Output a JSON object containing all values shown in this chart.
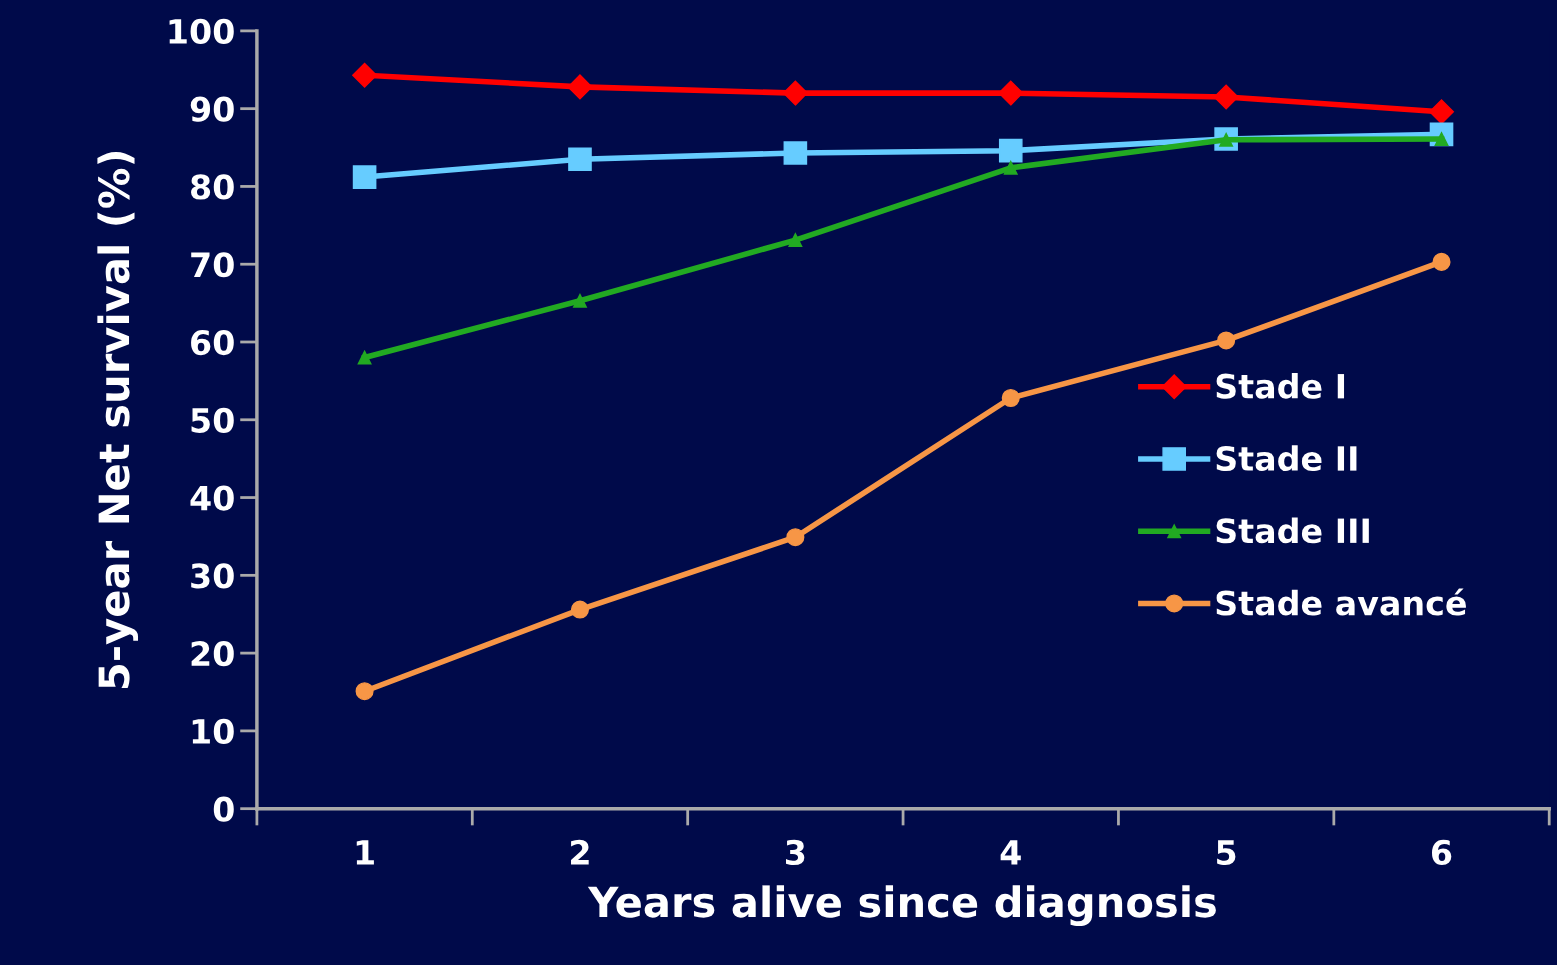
{
  "chart_data": {
    "type": "line",
    "xlabel": "Years alive since diagnosis",
    "ylabel": "5-year Net survival (%)",
    "categories": [
      "1",
      "2",
      "3",
      "4",
      "5",
      "6"
    ],
    "ylim": [
      0,
      100
    ],
    "yticks": [
      0,
      10,
      20,
      30,
      40,
      50,
      60,
      70,
      80,
      90,
      100
    ],
    "grid": false,
    "legend": "right",
    "series": [
      {
        "name": "Stade I",
        "color": "#ff0000",
        "marker": "diamond",
        "values": [
          94.3,
          92.8,
          92.0,
          92.0,
          91.5,
          89.6
        ]
      },
      {
        "name": "Stade II",
        "color": "#66ccff",
        "marker": "square",
        "values": [
          81.2,
          83.5,
          84.3,
          84.6,
          86.1,
          86.7
        ]
      },
      {
        "name": "Stade III",
        "color": "#22aa22",
        "marker": "triangle",
        "values": [
          58.0,
          65.3,
          73.1,
          82.4,
          86.0,
          86.1
        ]
      },
      {
        "name": "Stade avancé",
        "color": "#f79646",
        "marker": "circle",
        "values": [
          15.1,
          25.6,
          34.9,
          52.8,
          60.2,
          70.3
        ]
      }
    ]
  }
}
